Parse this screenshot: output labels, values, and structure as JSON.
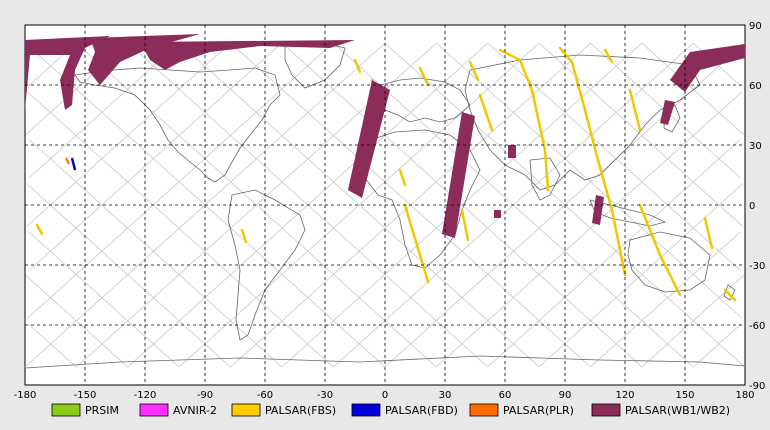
{
  "map": {
    "lon_range": [
      -180,
      180
    ],
    "lat_range": [
      -90,
      90
    ],
    "x_ticks": [
      "-180",
      "-150",
      "-120",
      "-90",
      "-60",
      "-30",
      "0",
      "30",
      "60",
      "90",
      "120",
      "150",
      "180"
    ],
    "y_ticks": [
      "90",
      "60",
      "30",
      "0",
      "-30",
      "-60",
      "-90"
    ],
    "grid": "dashed"
  },
  "legend": [
    {
      "label": "PRSIM",
      "color": "#8fcc1a"
    },
    {
      "label": "AVNIR-2",
      "color": "#ff2eff"
    },
    {
      "label": "PALSAR(FBS)",
      "color": "#ffcc00"
    },
    {
      "label": "PALSAR(FBD)",
      "color": "#0000dd"
    },
    {
      "label": "PALSAR(PLR)",
      "color": "#ff6a00"
    },
    {
      "label": "PALSAR(WB1/WB2)",
      "color": "#8b2c5a"
    }
  ],
  "swaths": {
    "fbs_color": "#f0c800",
    "wb_color": "#8b2c5a",
    "fbd_color": "#0000cc",
    "plr_color": "#ff6a00"
  }
}
